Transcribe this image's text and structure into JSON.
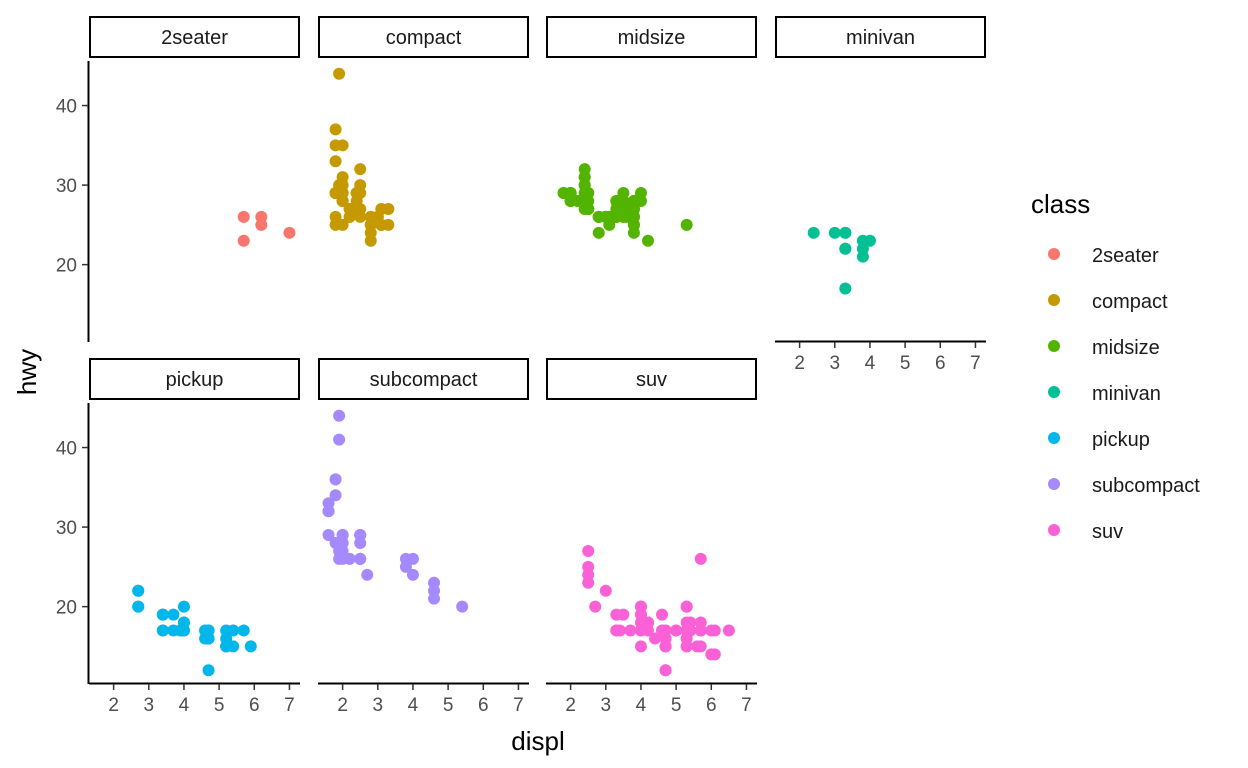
{
  "chart_data": {
    "type": "scatter",
    "xlabel": "displ",
    "ylabel": "hwy",
    "xlim": [
      1.3,
      7.3
    ],
    "ylim": [
      10.4,
      45.6
    ],
    "xticks": [
      2,
      3,
      4,
      5,
      6,
      7
    ],
    "yticks": [
      20,
      30,
      40
    ],
    "grid": false,
    "legend": {
      "title": "class",
      "position": "right"
    },
    "panels": [
      {
        "name": "2seater",
        "color": "#F8766D",
        "points": [
          [
            5.7,
            26
          ],
          [
            5.7,
            23
          ],
          [
            6.2,
            26
          ],
          [
            6.2,
            25
          ],
          [
            7.0,
            24
          ]
        ]
      },
      {
        "name": "compact",
        "color": "#C49A00",
        "points": [
          [
            1.8,
            29
          ],
          [
            1.8,
            29
          ],
          [
            2.0,
            31
          ],
          [
            2.0,
            30
          ],
          [
            2.8,
            26
          ],
          [
            2.8,
            26
          ],
          [
            3.1,
            27
          ],
          [
            1.8,
            26
          ],
          [
            1.8,
            25
          ],
          [
            2.0,
            28
          ],
          [
            2.0,
            29
          ],
          [
            2.8,
            25
          ],
          [
            2.8,
            25
          ],
          [
            3.1,
            25
          ],
          [
            3.1,
            25
          ],
          [
            2.2,
            26
          ],
          [
            2.2,
            27
          ],
          [
            2.4,
            29
          ],
          [
            2.4,
            29
          ],
          [
            3.0,
            26
          ],
          [
            3.0,
            26
          ],
          [
            1.8,
            29
          ],
          [
            1.8,
            29
          ],
          [
            1.8,
            33
          ],
          [
            2.2,
            27
          ],
          [
            2.2,
            26
          ],
          [
            2.4,
            28
          ],
          [
            2.4,
            29
          ],
          [
            2.0,
            29
          ],
          [
            2.0,
            29
          ],
          [
            2.5,
            29
          ],
          [
            2.5,
            30
          ],
          [
            2.5,
            32
          ],
          [
            1.9,
            44
          ],
          [
            2.0,
            35
          ],
          [
            1.8,
            37
          ],
          [
            1.8,
            35
          ],
          [
            1.9,
            30
          ],
          [
            2.5,
            26
          ],
          [
            2.0,
            28
          ],
          [
            2.8,
            24
          ],
          [
            2.8,
            23
          ],
          [
            2.5,
            27
          ],
          [
            2.0,
            25
          ],
          [
            2.4,
            27
          ],
          [
            2.0,
            28
          ],
          [
            2.8,
            25
          ],
          [
            3.3,
            27
          ],
          [
            3.3,
            25
          ]
        ]
      },
      {
        "name": "midsize",
        "color": "#53B400",
        "points": [
          [
            2.4,
            27
          ],
          [
            2.4,
            30
          ],
          [
            3.1,
            26
          ],
          [
            3.5,
            29
          ],
          [
            3.6,
            26
          ],
          [
            2.4,
            31
          ],
          [
            3.0,
            26
          ],
          [
            3.3,
            26
          ],
          [
            3.3,
            27
          ],
          [
            3.3,
            26
          ],
          [
            3.8,
            28
          ],
          [
            3.8,
            26
          ],
          [
            4.0,
            29
          ],
          [
            2.5,
            27
          ],
          [
            2.5,
            27
          ],
          [
            3.5,
            26
          ],
          [
            3.5,
            26
          ],
          [
            3.0,
            26
          ],
          [
            3.0,
            26
          ],
          [
            3.5,
            28
          ],
          [
            2.4,
            31
          ],
          [
            3.3,
            28
          ],
          [
            5.3,
            25
          ],
          [
            2.8,
            24
          ],
          [
            3.1,
            26
          ],
          [
            4.2,
            23
          ],
          [
            1.8,
            29
          ],
          [
            2.0,
            28
          ],
          [
            2.0,
            29
          ],
          [
            2.8,
            26
          ],
          [
            2.8,
            26
          ],
          [
            3.1,
            25
          ],
          [
            2.4,
            29
          ],
          [
            2.5,
            28
          ],
          [
            3.5,
            28
          ],
          [
            2.5,
            27
          ],
          [
            2.5,
            27
          ],
          [
            2.5,
            29
          ],
          [
            2.5,
            29
          ],
          [
            3.3,
            26
          ],
          [
            3.3,
            28
          ],
          [
            2.0,
            29
          ],
          [
            2.0,
            28
          ],
          [
            2.0,
            29
          ],
          [
            2.0,
            28
          ],
          [
            2.8,
            26
          ],
          [
            3.6,
            27
          ],
          [
            2.4,
            30
          ],
          [
            2.4,
            32
          ],
          [
            3.8,
            27
          ],
          [
            3.8,
            26
          ],
          [
            3.8,
            25
          ],
          [
            1.8,
            29
          ],
          [
            2.2,
            28
          ],
          [
            3.8,
            28
          ],
          [
            3.8,
            26
          ],
          [
            3.8,
            24
          ],
          [
            3.8,
            27
          ],
          [
            3.8,
            25
          ],
          [
            4.0,
            28
          ],
          [
            3.0,
            26
          ]
        ]
      },
      {
        "name": "minivan",
        "color": "#00C094",
        "points": [
          [
            2.4,
            24
          ],
          [
            3.0,
            24
          ],
          [
            3.3,
            22
          ],
          [
            3.3,
            22
          ],
          [
            3.3,
            24
          ],
          [
            3.3,
            24
          ],
          [
            3.3,
            17
          ],
          [
            3.8,
            22
          ],
          [
            3.8,
            21
          ],
          [
            3.8,
            23
          ],
          [
            4.0,
            23
          ]
        ]
      },
      {
        "name": "pickup",
        "color": "#00B6EB",
        "points": [
          [
            2.7,
            20
          ],
          [
            2.7,
            22
          ],
          [
            3.7,
            17
          ],
          [
            3.7,
            19
          ],
          [
            3.9,
            17
          ],
          [
            3.9,
            17
          ],
          [
            4.7,
            12
          ],
          [
            4.7,
            17
          ],
          [
            4.7,
            16
          ],
          [
            5.2,
            16
          ],
          [
            5.2,
            17
          ],
          [
            5.7,
            17
          ],
          [
            5.9,
            15
          ],
          [
            4.7,
            16
          ],
          [
            4.7,
            16
          ],
          [
            4.7,
            17
          ],
          [
            5.2,
            15
          ],
          [
            5.2,
            15
          ],
          [
            3.4,
            17
          ],
          [
            3.4,
            19
          ],
          [
            4.0,
            20
          ],
          [
            4.0,
            17
          ],
          [
            4.6,
            17
          ],
          [
            4.6,
            16
          ],
          [
            5.4,
            17
          ],
          [
            5.4,
            15
          ],
          [
            2.7,
            20
          ],
          [
            2.7,
            22
          ],
          [
            3.4,
            17
          ],
          [
            3.4,
            19
          ],
          [
            4.0,
            18
          ],
          [
            4.0,
            18
          ],
          [
            4.0,
            17
          ]
        ]
      },
      {
        "name": "subcompact",
        "color": "#A58AFF",
        "points": [
          [
            3.8,
            26
          ],
          [
            3.8,
            25
          ],
          [
            4.0,
            26
          ],
          [
            4.0,
            24
          ],
          [
            4.6,
            21
          ],
          [
            4.6,
            22
          ],
          [
            4.6,
            23
          ],
          [
            5.4,
            20
          ],
          [
            1.6,
            33
          ],
          [
            1.6,
            32
          ],
          [
            1.6,
            32
          ],
          [
            1.6,
            29
          ],
          [
            1.6,
            32
          ],
          [
            1.8,
            34
          ],
          [
            1.8,
            36
          ],
          [
            1.8,
            36
          ],
          [
            2.0,
            29
          ],
          [
            1.9,
            26
          ],
          [
            1.9,
            27
          ],
          [
            2.0,
            28
          ],
          [
            2.0,
            28
          ],
          [
            2.5,
            26
          ],
          [
            2.5,
            26
          ],
          [
            2.5,
            29
          ],
          [
            2.5,
            28
          ],
          [
            2.2,
            26
          ],
          [
            1.9,
            44
          ],
          [
            1.9,
            41
          ],
          [
            2.0,
            29
          ],
          [
            2.5,
            26
          ],
          [
            2.5,
            29
          ],
          [
            2.5,
            29
          ],
          [
            2.7,
            24
          ],
          [
            1.8,
            28
          ],
          [
            2.0,
            26
          ],
          [
            2.0,
            27
          ]
        ]
      },
      {
        "name": "suv",
        "color": "#FB61D7",
        "points": [
          [
            5.3,
            20
          ],
          [
            5.3,
            15
          ],
          [
            5.3,
            20
          ],
          [
            5.7,
            17
          ],
          [
            6.0,
            17
          ],
          [
            5.7,
            26
          ],
          [
            6.5,
            17
          ],
          [
            4.7,
            12
          ],
          [
            5.7,
            15
          ],
          [
            5.7,
            17
          ],
          [
            6.1,
            17
          ],
          [
            5.3,
            16
          ],
          [
            6.0,
            14
          ],
          [
            4.7,
            15
          ],
          [
            4.7,
            12
          ],
          [
            4.7,
            16
          ],
          [
            4.7,
            17
          ],
          [
            5.3,
            15
          ],
          [
            4.0,
            17
          ],
          [
            4.0,
            19
          ],
          [
            4.6,
            17
          ],
          [
            5.0,
            17
          ],
          [
            2.5,
            23
          ],
          [
            2.5,
            25
          ],
          [
            2.5,
            24
          ],
          [
            2.5,
            27
          ],
          [
            2.7,
            20
          ],
          [
            3.0,
            22
          ],
          [
            3.3,
            19
          ],
          [
            3.3,
            17
          ],
          [
            4.0,
            20
          ],
          [
            4.0,
            17
          ],
          [
            4.7,
            15
          ],
          [
            4.7,
            17
          ],
          [
            5.7,
            18
          ],
          [
            6.1,
            14
          ],
          [
            3.4,
            17
          ],
          [
            4.0,
            19
          ],
          [
            4.0,
            20
          ],
          [
            4.6,
            19
          ],
          [
            5.4,
            17
          ],
          [
            5.4,
            18
          ],
          [
            4.0,
            20
          ],
          [
            4.0,
            15
          ],
          [
            4.2,
            18
          ],
          [
            4.7,
            16
          ],
          [
            5.3,
            17
          ],
          [
            5.3,
            18
          ],
          [
            3.5,
            19
          ],
          [
            4.2,
            18
          ],
          [
            3.7,
            17
          ],
          [
            4.0,
            18
          ],
          [
            4.6,
            17
          ],
          [
            5.4,
            17
          ],
          [
            5.4,
            18
          ],
          [
            4.4,
            16
          ],
          [
            5.0,
            17
          ],
          [
            5.6,
            15
          ],
          [
            3.3,
            17
          ],
          [
            4.2,
            18
          ],
          [
            4.2,
            17
          ],
          [
            5.3,
            16
          ],
          [
            4.7,
            15
          ]
        ]
      }
    ]
  }
}
